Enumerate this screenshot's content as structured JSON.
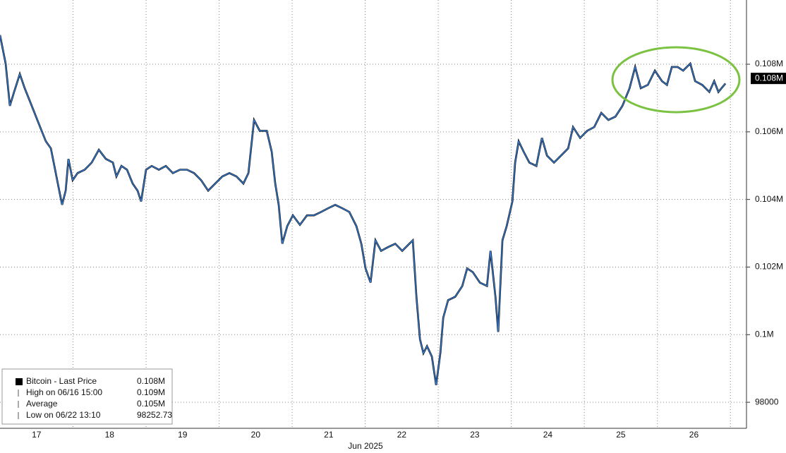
{
  "chart_data": {
    "type": "line",
    "series": [
      {
        "name": "Bitcoin - Last Price",
        "color": "#3a7fd5",
        "x": [
          17.0,
          17.077,
          17.135,
          17.193,
          17.271,
          17.338,
          17.435,
          17.531,
          17.628,
          17.696,
          17.754,
          17.802,
          17.85,
          17.899,
          17.937,
          17.995,
          18.063,
          18.159,
          18.256,
          18.353,
          18.449,
          18.546,
          18.594,
          18.662,
          18.739,
          18.816,
          18.884,
          18.932,
          19.0,
          19.077,
          19.174,
          19.271,
          19.367,
          19.464,
          19.56,
          19.657,
          19.754,
          19.85,
          19.947,
          20.044,
          20.14,
          20.237,
          20.333,
          20.401,
          20.478,
          20.556,
          20.652,
          20.72,
          20.768,
          20.816,
          20.865,
          20.932,
          21.01,
          21.106,
          21.203,
          21.3,
          21.396,
          21.493,
          21.589,
          21.686,
          21.783,
          21.879,
          21.947,
          22.005,
          22.073,
          22.14,
          22.217,
          22.314,
          22.411,
          22.507,
          22.604,
          22.652,
          22.701,
          22.749,
          22.797,
          22.846,
          22.913,
          22.971,
          23.029,
          23.068,
          23.135,
          23.232,
          23.329,
          23.396,
          23.473,
          23.57,
          23.667,
          23.715,
          23.783,
          23.821,
          23.879,
          23.937,
          24.015,
          24.053,
          24.101,
          24.169,
          24.247,
          24.343,
          24.42,
          24.488,
          24.585,
          24.681,
          24.778,
          24.846,
          24.942,
          25.039,
          25.135,
          25.232,
          25.329,
          25.425,
          25.522,
          25.619,
          25.696,
          25.773,
          25.87,
          25.966,
          26.063,
          26.131,
          26.198,
          26.276,
          26.353,
          26.45,
          26.517,
          26.614,
          26.711,
          26.778,
          26.836,
          26.932
        ],
        "values": [
          108860,
          108020,
          106770,
          107180,
          107710,
          107290,
          106770,
          106240,
          105720,
          105510,
          104880,
          104360,
          103840,
          104260,
          105200,
          104570,
          104780,
          104880,
          105090,
          105470,
          105200,
          105090,
          104680,
          104990,
          104880,
          104470,
          104260,
          103940,
          104880,
          104990,
          104880,
          104990,
          104780,
          104880,
          104880,
          104780,
          104570,
          104260,
          104470,
          104680,
          104780,
          104680,
          104470,
          104780,
          106350,
          106030,
          106030,
          105410,
          104470,
          103840,
          102690,
          103210,
          103530,
          103250,
          103530,
          103530,
          103630,
          103740,
          103840,
          103740,
          103630,
          103210,
          102690,
          101960,
          101540,
          102790,
          102480,
          102590,
          102690,
          102480,
          102690,
          102790,
          101120,
          99870,
          99450,
          99660,
          99350,
          98510,
          99450,
          100500,
          101020,
          101120,
          101440,
          101960,
          101850,
          101540,
          101440,
          102480,
          101120,
          100080,
          102790,
          103210,
          103940,
          105090,
          105720,
          105410,
          105090,
          104990,
          105820,
          105300,
          105090,
          105300,
          105510,
          106140,
          105820,
          106030,
          106140,
          106560,
          106350,
          106450,
          106770,
          107290,
          107920,
          107290,
          107390,
          107810,
          107500,
          107390,
          107920,
          107920,
          107810,
          108020,
          107500,
          107390,
          107180,
          107500,
          107180,
          107430
        ]
      }
    ],
    "xlim": [
      17.0,
      27.22
    ],
    "xticks": [
      {
        "value": 17.5,
        "label": "17"
      },
      {
        "value": 18.5,
        "label": "18"
      },
      {
        "value": 19.5,
        "label": "19"
      },
      {
        "value": 20.5,
        "label": "20"
      },
      {
        "value": 21.5,
        "label": "21"
      },
      {
        "value": 22.5,
        "label": "22"
      },
      {
        "value": 23.5,
        "label": "23"
      },
      {
        "value": 24.5,
        "label": "24"
      },
      {
        "value": 25.5,
        "label": "25"
      },
      {
        "value": 26.5,
        "label": "26"
      }
    ],
    "x_label": "Jun 2025",
    "ylim": [
      97230,
      109900
    ],
    "yticks": [
      98000,
      {
        "value": 100000,
        "label": "0.1M"
      },
      {
        "value": 102000,
        "label": "0.102M"
      },
      {
        "value": 104000,
        "label": "0.104M"
      },
      {
        "value": 106000,
        "label": "0.106M"
      },
      {
        "value": 108000,
        "label": "0.108M"
      }
    ],
    "last_price": {
      "value": 107580,
      "label": "0.108M"
    },
    "grid": true,
    "legend_rows": [
      {
        "label": "Bitcoin - Last Price",
        "value": "0.108M"
      },
      {
        "label": "High on 06/16 15:00",
        "value": "0.109M"
      },
      {
        "label": "Average",
        "value": "0.105M"
      },
      {
        "label": "Low on 06/22 13:10",
        "value": "98252.73"
      }
    ]
  }
}
